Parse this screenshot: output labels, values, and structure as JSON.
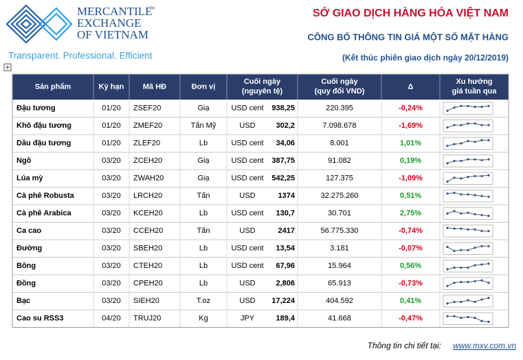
{
  "logo": {
    "line1": "MERCANTILE",
    "line2": "EXCHANGE",
    "line3": "OF VIETNAM",
    "tm": "TM",
    "tagline": "Transparent. Professional. Efficient"
  },
  "header": {
    "title": "SỞ GIAO DỊCH HÀNG HÓA VIỆT NAM",
    "subtitle": "CÔNG BỐ THÔNG TIN GIÁ MỘT SỐ MẶT HÀNG",
    "date": "(Kết thúc phiên giao dịch ngày 20/12/2019)"
  },
  "table": {
    "columns": [
      "Sản phẩm",
      "Kỳ hạn",
      "Mã HĐ",
      "Đơn vị",
      [
        "Cuối ngày",
        "(nguyên tệ)"
      ],
      [
        "Cuối ngày",
        "(quy đổi VND)"
      ],
      "Δ",
      [
        "Xu hướng",
        "giá tuần qua"
      ]
    ],
    "rows": [
      [
        "Đậu tương",
        "01/20",
        "ZSEF20",
        "Giạ",
        "USD cent",
        "938,25",
        "220.395",
        "-0,24%"
      ],
      [
        "Khô đậu tương",
        "01/20",
        "ZMEF20",
        "Tấn Mỹ",
        "USD",
        "302,2",
        "7.098.678",
        "-1,69%"
      ],
      [
        "Dầu đậu tương",
        "01/20",
        "ZLEF20",
        "Lb",
        "USD cent",
        "34,06",
        "8.001",
        "1,01%"
      ],
      [
        "Ngô",
        "03/20",
        "ZCEH20",
        "Giạ",
        "USD cent",
        "387,75",
        "91.082",
        "0,19%"
      ],
      [
        "Lúa mỳ",
        "03/20",
        "ZWAH20",
        "Giạ",
        "USD cent",
        "542,25",
        "127.375",
        "-1,09%"
      ],
      [
        "Cà phê Robusta",
        "03/20",
        "LRCH20",
        "Tấn",
        "USD",
        "1374",
        "32.275.260",
        "0,51%"
      ],
      [
        "Cà phê Arabica",
        "03/20",
        "KCEH20",
        "Lb",
        "USD cent",
        "130,7",
        "30.701",
        "2,75%"
      ],
      [
        "Ca cao",
        "03/20",
        "CCEH20",
        "Tấn",
        "USD",
        "2417",
        "56.775.330",
        "-0,74%"
      ],
      [
        "Đường",
        "03/20",
        "SBEH20",
        "Lb",
        "USD cent",
        "13,54",
        "3.181",
        "-0,07%"
      ],
      [
        "Bông",
        "03/20",
        "CTEH20",
        "Lb",
        "USD cent",
        "67,96",
        "15.964",
        "0,56%"
      ],
      [
        "Đồng",
        "03/20",
        "CPEH20",
        "Lb",
        "USD",
        "2,806",
        "65.913",
        "-0,73%"
      ],
      [
        "Bạc",
        "03/20",
        "SIEH20",
        "T.oz",
        "USD",
        "17,224",
        "404.592",
        "0,41%"
      ],
      [
        "Cao su RSS3",
        "04/20",
        "TRUJ20",
        "Kg",
        "JPY",
        "189,4",
        "41.668",
        "-0,47%"
      ]
    ],
    "trends": [
      [
        2,
        6,
        8,
        8,
        7,
        7,
        8
      ],
      [
        3,
        6,
        6,
        8,
        8,
        6,
        6
      ],
      [
        2,
        4,
        5,
        8,
        7,
        9,
        9
      ],
      [
        2,
        5,
        5,
        7,
        7,
        6,
        7
      ],
      [
        1,
        6,
        5,
        7,
        8,
        8,
        9
      ],
      [
        8,
        9,
        7,
        7,
        6,
        5,
        4
      ],
      [
        5,
        8,
        5,
        6,
        4,
        3,
        2
      ],
      [
        9,
        8,
        8,
        7,
        7,
        5,
        5
      ],
      [
        7,
        2,
        3,
        3,
        6,
        8,
        8
      ],
      [
        1,
        3,
        3,
        3,
        6,
        7,
        8
      ],
      [
        2,
        6,
        7,
        7,
        8,
        9,
        6
      ],
      [
        2,
        4,
        4,
        6,
        4,
        7,
        9
      ],
      [
        8,
        8,
        6,
        7,
        6,
        2,
        1
      ]
    ]
  },
  "footer": {
    "label": "Thông tin chi tiết tại:",
    "url": "www.mxv.com.vn"
  }
}
